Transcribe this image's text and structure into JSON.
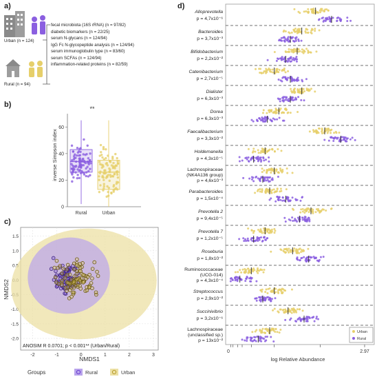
{
  "figure": {
    "panel_a": {
      "label": "a)",
      "urban_label": "Urban (n = 124)",
      "rural_label": "Rural (n = 94)",
      "datasets": [
        "fecal microbiota (16S rRNA) (n = 97/82)",
        "diabetic biomarkers (n = 22/25)",
        "serum N-glycans (n = 124/94)",
        "IgG Fc N-glycopeptide analysis (n = 124/94)",
        "serum immunoglobulin type (n = 83/60)",
        "serum SCFAs (n = 124/94)",
        "inflammation-related proteins (n = 82/59)"
      ]
    },
    "panel_b": {
      "label": "b)",
      "ylabel": "inverse Simpson index",
      "significance": "**",
      "yticks": [
        "0",
        "20",
        "40",
        "60"
      ],
      "categories": [
        "Rural",
        "Urban"
      ],
      "box": {
        "Rural": {
          "q1": 26,
          "median": 34,
          "q3": 43,
          "min": 2,
          "max": 65
        },
        "Urban": {
          "q1": 13,
          "median": 26,
          "q3": 35,
          "min": 0,
          "max": 65
        }
      }
    },
    "panel_c": {
      "label": "c)",
      "xlabel": "NMDS1",
      "ylabel": "NMDS2",
      "xticks": [
        "-2",
        "-1",
        "0",
        "1",
        "2",
        "3"
      ],
      "yticks": [
        "1.5",
        "1.0",
        "0.5",
        "0.0",
        "-0.5",
        "-1.0",
        "-1.5",
        "-2.0"
      ],
      "anosim": "ANOSIM R 0.0701; p < 0.001** (Urban/Rural)",
      "legend_title": "Groups",
      "legend_items": [
        "Rural",
        "Urban"
      ]
    },
    "panel_d": {
      "label": "d)",
      "xlabel": "log Relative Abundance",
      "x_min_label": "0",
      "x_max_label": "2.97",
      "legend": [
        "Urban",
        "Rural"
      ],
      "taxa": [
        {
          "name": "Alloprevotella",
          "p": "p = 4,7x10⁻⁶"
        },
        {
          "name": "Bacteroides",
          "p": "p = 3,7x10⁻³"
        },
        {
          "name": "Bifidobacterium",
          "p": "p = 2,2x10⁻²"
        },
        {
          "name": "Catenibacterium",
          "p": "p = 2,7x10⁻⁵"
        },
        {
          "name": "Dialister",
          "p": "p = 6,3x10⁻³"
        },
        {
          "name": "Dorea",
          "p": "p = 6,3x10⁻³"
        },
        {
          "name": "Faecalibacterium",
          "p": "p = 3,3x10⁻²"
        },
        {
          "name": "Holdemanella",
          "p": "p = 4,3x10⁻⁵"
        },
        {
          "name": "Lachnospiraceae",
          "name2": "(NK4A136 group)",
          "p": "p = 4,6x10⁻³"
        },
        {
          "name": "Parabacteroides",
          "p": "p = 1,5x10⁻⁴"
        },
        {
          "name": "Prevotella 2",
          "p": "p = 9,4x10⁻⁵"
        },
        {
          "name": "Prevotella 7",
          "p": "p = 1,2x10⁻⁵"
        },
        {
          "name": "Roseburia",
          "p": "p = 1,8x10⁻²"
        },
        {
          "name": "Ruminococcaceae",
          "name2": "(UCG-014)",
          "p": "p = 4,3x10⁻⁴"
        },
        {
          "name": "Streptococcus",
          "p": "p = 2,9x10⁻²"
        },
        {
          "name": "Succinivibrio",
          "p": "p = 3,2x10⁻⁶"
        },
        {
          "name": "Lachnospiraceae",
          "name2": "(unclassified sp.)",
          "p": "p = 13x10⁻²"
        }
      ]
    },
    "colors": {
      "rural": "#8b5fe0",
      "urban": "#e6cf6a",
      "rural_fill": "#b9a4ec",
      "urban_fill": "#ece0a4"
    }
  }
}
